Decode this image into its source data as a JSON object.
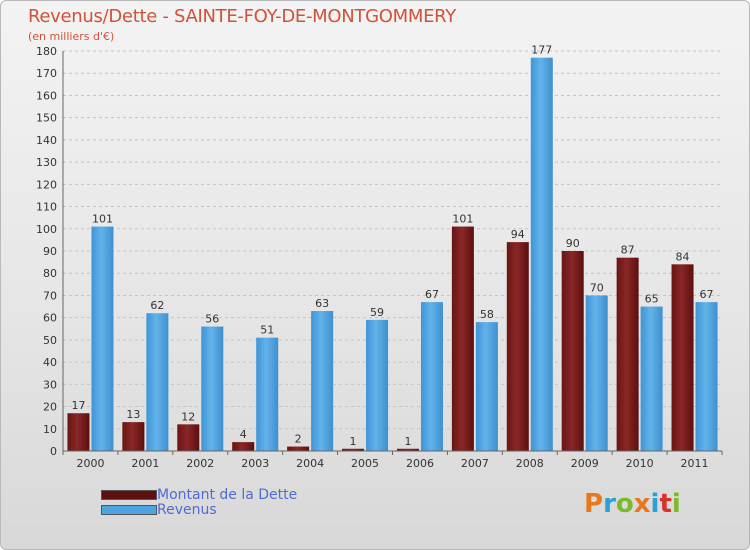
{
  "title": "Revenus/Dette - SAINTE-FOY-DE-MONTGOMMERY",
  "subtitle": "(en milliers d'€)",
  "logo": {
    "letters": [
      "P",
      "r",
      "o",
      "x",
      "i",
      "t",
      "i"
    ],
    "colors": [
      "#e8781e",
      "#2aa0d8",
      "#7bbb2a",
      "#e8781e",
      "#2aa0d8",
      "#d9322b",
      "#7bbb2a"
    ]
  },
  "legend": [
    {
      "label": "Montant de la Dette",
      "color": "#7a1a1a"
    },
    {
      "label": "Revenus",
      "color": "#4ea3e0"
    }
  ],
  "chart_data": {
    "type": "bar",
    "categories": [
      "2000",
      "2001",
      "2002",
      "2003",
      "2004",
      "2005",
      "2006",
      "2007",
      "2008",
      "2009",
      "2010",
      "2011"
    ],
    "series": [
      {
        "name": "Montant de la Dette",
        "color": "#7a1a1a",
        "values": [
          17,
          13,
          12,
          4,
          2,
          1,
          1,
          101,
          94,
          90,
          87,
          84
        ]
      },
      {
        "name": "Revenus",
        "color": "#4ea3e0",
        "values": [
          101,
          62,
          56,
          51,
          63,
          59,
          67,
          58,
          177,
          70,
          65,
          67
        ]
      }
    ],
    "ylim": [
      0,
      180
    ],
    "yticks": [
      0,
      10,
      20,
      30,
      40,
      50,
      60,
      70,
      80,
      90,
      100,
      110,
      120,
      130,
      140,
      150,
      160,
      170,
      180
    ],
    "grid": true
  }
}
